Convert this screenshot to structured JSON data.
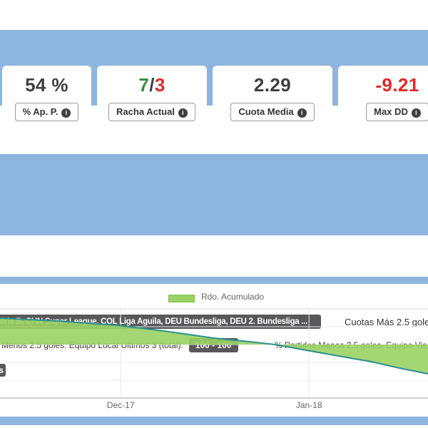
{
  "colors": {
    "band_blue": "#8db5de",
    "badge_dark": "#58585a",
    "value_neutral": "#3f3f3f",
    "value_positive": "#3d8b40",
    "value_negative": "#e02b2b",
    "chart_fill": "#9ad164",
    "chart_line": "#2b908f"
  },
  "stats_cards": [
    {
      "value": "54 %",
      "label": "% Ap. P."
    },
    {
      "value_win": "7",
      "value_sep": "/",
      "value_loss": "3",
      "label": "Racha Actual"
    },
    {
      "value": "2.29",
      "label": "Cuota Media"
    },
    {
      "value": "-9.21",
      "label": "Max DD"
    }
  ],
  "filters": {
    "leagues_badge": "érie B, CHN Super League, COL Liga Aguila, DEU Bundesliga, DEU 2. Bundesliga ...",
    "cuotas_mas": "Cuotas Más 2.5 gole",
    "menos_local_label": "Menos 2.5 goles. Equipo Local Últimos 3 (total):",
    "menos_local_value": "100 - 100",
    "menos_visitante_label": "% Partidos Menos 2.5 goles. Equipo Vis",
    "small_badge_fragment": "s"
  },
  "chart_data": {
    "type": "area",
    "legend": {
      "label": "Rdo. Acumulado",
      "position": "top-center"
    },
    "x_ticks": [
      {
        "label": "Dec-17",
        "x_frac": 0.282
      },
      {
        "label": "Jan-18",
        "x_frac": 0.722
      }
    ],
    "y_axis_labels_visible": false,
    "value_units": "gridline units (y tick labels cropped out of view)",
    "zero_crossing_x_frac": 0.642,
    "series": [
      {
        "name": "Rdo. Acumulado",
        "points": [
          {
            "x_frac": 0.0,
            "value": 1.48
          },
          {
            "x_frac": 0.133,
            "value": 1.32
          },
          {
            "x_frac": 0.275,
            "value": 1.08
          },
          {
            "x_frac": 0.383,
            "value": 0.76
          },
          {
            "x_frac": 0.5,
            "value": 0.36
          },
          {
            "x_frac": 0.583,
            "value": 0.16
          },
          {
            "x_frac": 0.642,
            "value": 0.0
          },
          {
            "x_frac": 0.725,
            "value": -0.36
          },
          {
            "x_frac": 0.8,
            "value": -0.68
          },
          {
            "x_frac": 0.867,
            "value": -0.96
          },
          {
            "x_frac": 0.933,
            "value": -1.32
          },
          {
            "x_frac": 1.0,
            "value": -1.64
          }
        ]
      }
    ]
  }
}
